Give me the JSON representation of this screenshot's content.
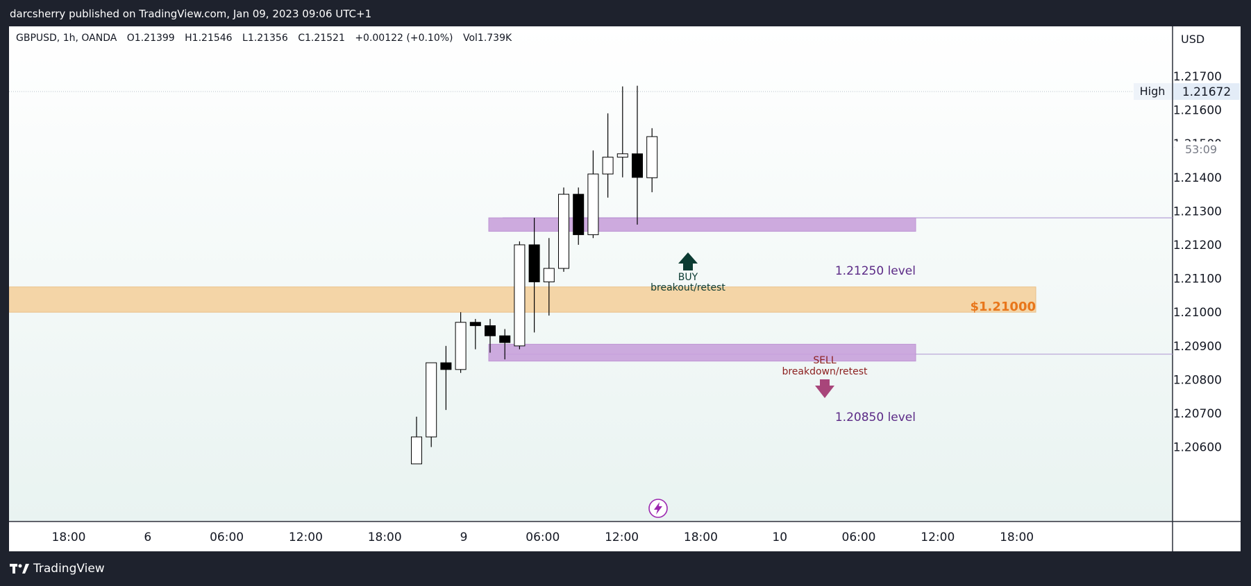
{
  "header": {
    "publisher_line": "darcsherry published on TradingView.com, Jan 09, 2023 09:06 UTC+1"
  },
  "legend": {
    "symbol": "GBPUSD, 1h, OANDA",
    "open": "O1.21399",
    "high": "H1.21546",
    "low": "L1.21356",
    "close": "C1.21521",
    "change": "+0.00122 (+0.10%)",
    "volume": "Vol1.739K"
  },
  "price_axis": {
    "currency": "USD",
    "high_label": "High",
    "high_value": "1.21672",
    "countdown": "53:09"
  },
  "footer": {
    "brand": "TradingView"
  },
  "colors": {
    "up_candle": "#ffffff",
    "down_candle": "#000000",
    "zone_purple": "#c9a2dc",
    "zone_orange": "#f5d29f",
    "buy_arrow": "#0c3b32",
    "sell_arrow": "#a8457a",
    "label_purple": "#5b2a86",
    "label_orange": "#e8761b"
  },
  "chart_data": {
    "type": "candlestick",
    "title": "",
    "xlabel": "",
    "ylabel": "",
    "ylim": [
      1.2055,
      1.2182
    ],
    "grid": false,
    "y_ticks": [
      "1.21700",
      "1.21600",
      "1.21500",
      "1.21400",
      "1.21300",
      "1.21200",
      "1.21100",
      "1.21000",
      "1.20900",
      "1.20800",
      "1.20700",
      "1.20600"
    ],
    "x_ticks": [
      "18:00",
      "6",
      "06:00",
      "12:00",
      "18:00",
      "9",
      "06:00",
      "12:00",
      "18:00",
      "10",
      "06:00",
      "12:00",
      "18:00"
    ],
    "candles": [
      {
        "o": 1.2055,
        "h": 1.2069,
        "l": 1.2055,
        "c": 1.2063
      },
      {
        "o": 1.2063,
        "h": 1.2085,
        "l": 1.206,
        "c": 1.2085
      },
      {
        "o": 1.2085,
        "h": 1.209,
        "l": 1.2071,
        "c": 1.2083
      },
      {
        "o": 1.2083,
        "h": 1.21,
        "l": 1.2082,
        "c": 1.2097
      },
      {
        "o": 1.2097,
        "h": 1.2098,
        "l": 1.2089,
        "c": 1.2096
      },
      {
        "o": 1.2096,
        "h": 1.2098,
        "l": 1.2088,
        "c": 1.2093
      },
      {
        "o": 1.2093,
        "h": 1.2095,
        "l": 1.2086,
        "c": 1.2091
      },
      {
        "o": 1.209,
        "h": 1.2121,
        "l": 1.2089,
        "c": 1.212
      },
      {
        "o": 1.212,
        "h": 1.2128,
        "l": 1.2094,
        "c": 1.2109
      },
      {
        "o": 1.2109,
        "h": 1.2122,
        "l": 1.2099,
        "c": 1.2113
      },
      {
        "o": 1.2113,
        "h": 1.2137,
        "l": 1.2112,
        "c": 1.2135
      },
      {
        "o": 1.2135,
        "h": 1.2137,
        "l": 1.212,
        "c": 1.2123
      },
      {
        "o": 1.2123,
        "h": 1.2148,
        "l": 1.2122,
        "c": 1.2141
      },
      {
        "o": 1.2141,
        "h": 1.2159,
        "l": 1.2134,
        "c": 1.2146
      },
      {
        "o": 1.2146,
        "h": 1.2167,
        "l": 1.214,
        "c": 1.2147
      },
      {
        "o": 1.2147,
        "h": 1.21672,
        "l": 1.2126,
        "c": 1.214
      },
      {
        "o": 1.21399,
        "h": 1.21546,
        "l": 1.21356,
        "c": 1.21521
      }
    ],
    "zones": [
      {
        "name": "1.21250 level",
        "from": 1.2124,
        "to": 1.2128,
        "color": "#c9a2dc"
      },
      {
        "name": "$1.21000",
        "from": 1.21,
        "to": 1.21075,
        "color": "#f5d29f"
      },
      {
        "name": "1.20850 level",
        "from": 1.20855,
        "to": 1.20905,
        "color": "#c9a2dc"
      }
    ],
    "annotations": [
      {
        "type": "buy",
        "title": "BUY",
        "subtitle": "breakout/retest"
      },
      {
        "type": "sell",
        "title": "SELL",
        "subtitle": "breakdown/retest"
      }
    ]
  }
}
